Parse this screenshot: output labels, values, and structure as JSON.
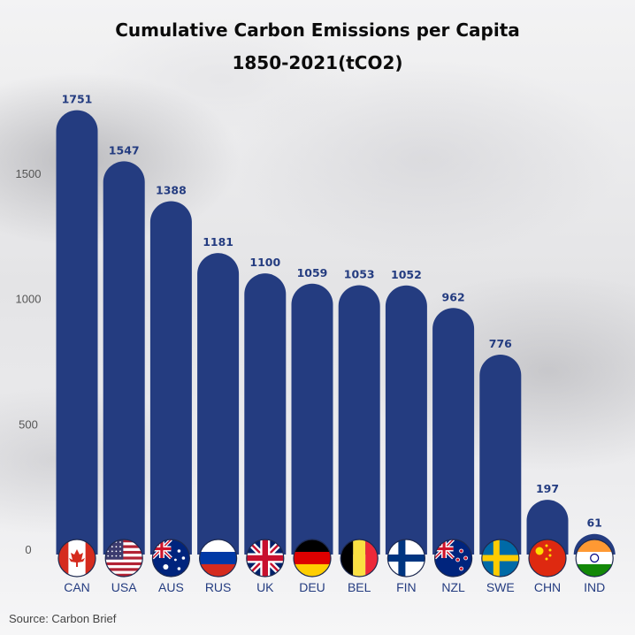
{
  "title_line1": "Cumulative Carbon Emissions per Capita",
  "title_line2": "1850-2021(tCO2)",
  "source": "Source: Carbon Brief",
  "colors": {
    "bar": "#243c80",
    "value_label": "#243c80",
    "axis_text": "#555555"
  },
  "chart_data": {
    "type": "bar",
    "title": "Cumulative Carbon Emissions per Capita 1850-2021(tCO2)",
    "categories": [
      "CAN",
      "USA",
      "AUS",
      "RUS",
      "UK",
      "DEU",
      "BEL",
      "FIN",
      "NZL",
      "SWE",
      "CHN",
      "IND"
    ],
    "values": [
      1751,
      1547,
      1388,
      1181,
      1100,
      1059,
      1053,
      1052,
      962,
      776,
      197,
      61
    ],
    "yticks": [
      0,
      500,
      1000,
      1500
    ],
    "ylim": [
      0,
      1800
    ],
    "xlabel": "",
    "ylabel": "",
    "grid": false,
    "legend": "none",
    "category_icons": [
      "flag-canada-icon",
      "flag-usa-icon",
      "flag-australia-icon",
      "flag-russia-icon",
      "flag-uk-icon",
      "flag-germany-icon",
      "flag-belgium-icon",
      "flag-finland-icon",
      "flag-new-zealand-icon",
      "flag-sweden-icon",
      "flag-china-icon",
      "flag-india-icon"
    ]
  }
}
